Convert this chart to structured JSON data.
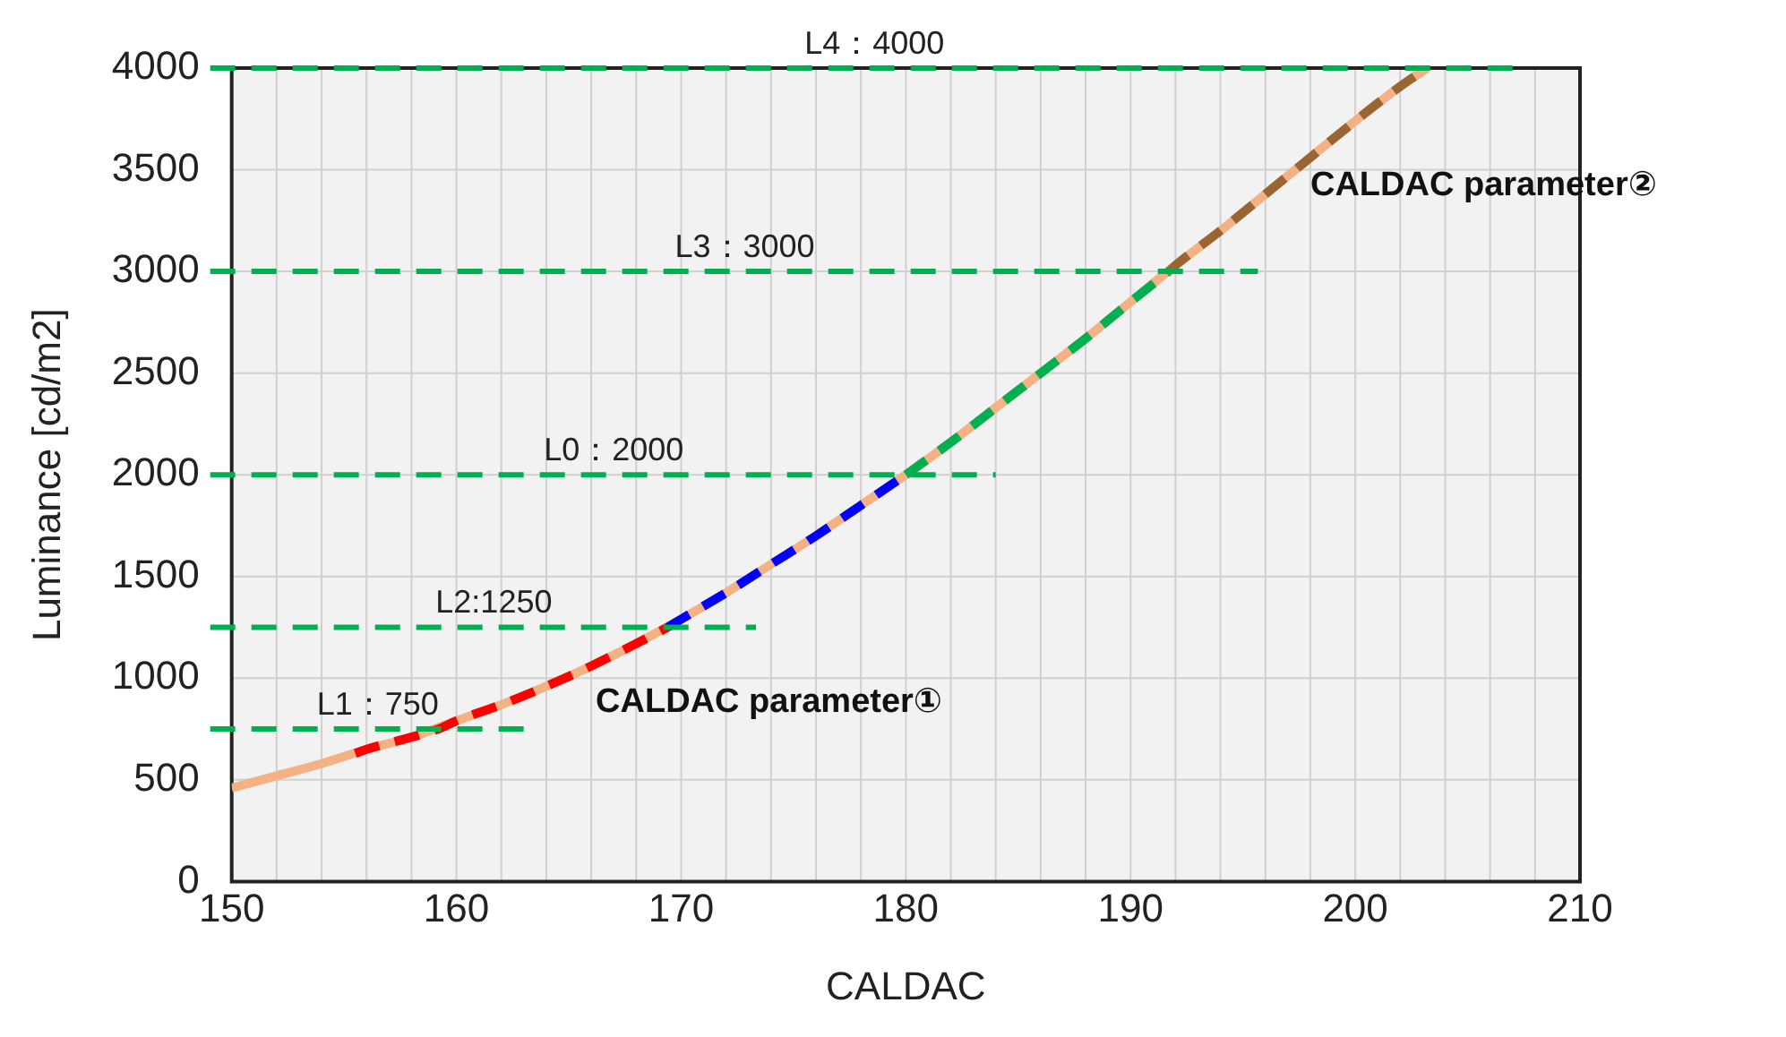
{
  "chart_data": {
    "type": "line",
    "xlabel": "CALDAC",
    "ylabel": "Luminance [cd/m2]",
    "xlim": [
      150,
      210
    ],
    "xticks": [
      150,
      {
        "value": 152,
        "label": null
      },
      {
        "value": 154,
        "label": null
      },
      {
        "value": 156,
        "label": null
      },
      {
        "value": 158,
        "label": null
      },
      160,
      {
        "value": 162,
        "label": null
      },
      {
        "value": 164,
        "label": null
      },
      {
        "value": 166,
        "label": null
      },
      {
        "value": 168,
        "label": null
      },
      170,
      {
        "value": 172,
        "label": null
      },
      {
        "value": 174,
        "label": null
      },
      {
        "value": 176,
        "label": null
      },
      {
        "value": 178,
        "label": null
      },
      180,
      {
        "value": 182,
        "label": null
      },
      {
        "value": 184,
        "label": null
      },
      {
        "value": 186,
        "label": null
      },
      {
        "value": 188,
        "label": null
      },
      190,
      {
        "value": 192,
        "label": null
      },
      {
        "value": 194,
        "label": null
      },
      {
        "value": 196,
        "label": null
      },
      {
        "value": 198,
        "label": null
      },
      200,
      {
        "value": 202,
        "label": null
      },
      {
        "value": 204,
        "label": null
      },
      {
        "value": 206,
        "label": null
      },
      {
        "value": 208,
        "label": null
      },
      210
    ],
    "ylim": [
      0,
      4000
    ],
    "yticks": [
      0,
      500,
      1000,
      1500,
      2000,
      2500,
      3000,
      3500,
      4000
    ],
    "grid": true,
    "legend": false,
    "marker": "none",
    "series": [
      {
        "color": "#f4b183",
        "line_style": "solid",
        "x": [
          150,
          152,
          154,
          156,
          158,
          160,
          162,
          164,
          166,
          168,
          170,
          172,
          174,
          176,
          178,
          180,
          182,
          184,
          186,
          188,
          190,
          192,
          194,
          196,
          198,
          200,
          202,
          203.2
        ],
        "values": [
          460,
          520,
          580,
          650,
          710,
          790,
          870,
          960,
          1060,
          1170,
          1290,
          1420,
          1560,
          1700,
          1850,
          2000,
          2160,
          2330,
          2500,
          2670,
          2850,
          3030,
          3200,
          3380,
          3560,
          3740,
          3910,
          4000
        ]
      },
      {
        "color": "#ff0000",
        "line_style": "dashed",
        "x": [
          155.5,
          156,
          158,
          159.2,
          160,
          162,
          164,
          166,
          168,
          169.4
        ],
        "values": [
          630,
          650,
          710,
          750,
          790,
          870,
          960,
          1060,
          1170,
          1250
        ]
      },
      {
        "color": "#0000ff",
        "line_style": "dashed",
        "x": [
          169.4,
          170,
          172,
          174,
          176,
          178,
          180
        ],
        "values": [
          1250,
          1290,
          1420,
          1560,
          1700,
          1850,
          2000
        ]
      },
      {
        "color": "#00b050",
        "line_style": "dashed",
        "x": [
          180,
          182,
          184,
          186,
          188,
          190,
          191.7
        ],
        "values": [
          2000,
          2160,
          2330,
          2500,
          2670,
          2850,
          3000
        ]
      },
      {
        "color": "#996633",
        "line_style": "dashed",
        "x": [
          191.7,
          192,
          194,
          196,
          198,
          200,
          202,
          203.2
        ],
        "values": [
          3000,
          3030,
          3200,
          3380,
          3560,
          3740,
          3910,
          4000
        ]
      }
    ],
    "ref_lines": [
      {
        "axis": "y",
        "value": 750,
        "label": "L1：750",
        "color": "#00b050",
        "line_style": "dashed"
      },
      {
        "axis": "y",
        "value": 1250,
        "label": "L2:1250",
        "color": "#00b050",
        "line_style": "dashed"
      },
      {
        "axis": "y",
        "value": 2000,
        "label": "L0：2000",
        "color": "#00b050",
        "line_style": "dashed"
      },
      {
        "axis": "y",
        "value": 3000,
        "label": "L3：3000",
        "color": "#00b050",
        "line_style": "dashed"
      },
      {
        "axis": "y",
        "value": 4000,
        "label": "L4：4000",
        "color": "#00b050",
        "line_style": "dashed"
      }
    ],
    "annotations": [
      "CALDAC parameter①",
      "CALDAC parameter②"
    ]
  }
}
